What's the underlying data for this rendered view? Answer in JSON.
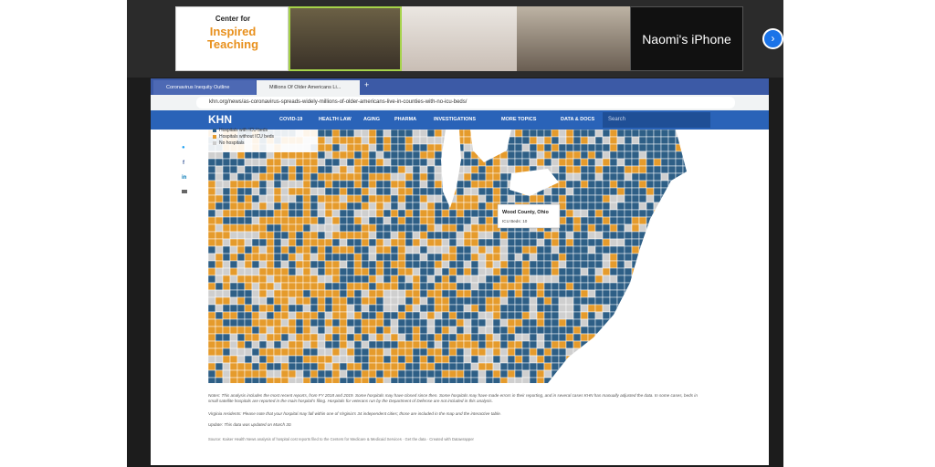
{
  "video_call": {
    "logo_lines": [
      "Center for",
      "Inspired",
      "Teaching"
    ],
    "device_label": "Naomi's iPhone"
  },
  "browser": {
    "tabs": [
      "Coronavirus Inequity Outline",
      "Millions Of Older Americans Li..."
    ],
    "new_tab": "+",
    "url": "khn.org/news/as-coronavirus-spreads-widely-millions-of-older-americans-live-in-counties-with-no-icu-beds/"
  },
  "site": {
    "logo": "KHN",
    "nav": [
      "COVID-19",
      "HEALTH LAW",
      "AGING",
      "PHARMA",
      "INVESTIGATIONS",
      "MORE TOPICS",
      "DATA & DOCS"
    ],
    "search": "Search"
  },
  "share": [
    "f",
    "in"
  ],
  "map": {
    "legend": [
      "Hospitals with ICU beds",
      "Hospitals without ICU beds",
      "No hospitals"
    ],
    "tooltip": {
      "title": "Wood County, Ohio",
      "text": "ICU Beds: 10"
    }
  },
  "notes": [
    "Notes: This analysis includes the most recent reports, from FY 2018 and 2019. Some hospitals may have closed since then. Some hospitals may have made errors in their reporting, and in several cases KHN has manually adjusted the data. In some cases, beds in small satellite hospitals are reported in the main hospital's filing. Hospitals for veterans run by the Department of Defense are not included in this analysis.",
    "Virginia residents: Please note that your hospital may fall within one of Virginia's 34 independent cities; those are included in the map and the interactive table.",
    "Update: This data was updated on March 30.",
    "Source: Kaiser Health News analysis of hospital cost reports filed to the Centers for Medicare & Medicaid Services · Get the data · Created with Datawrapper"
  ]
}
